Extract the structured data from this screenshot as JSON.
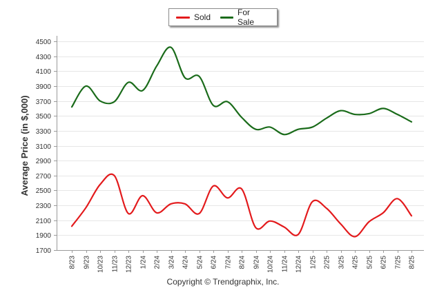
{
  "chart_data": {
    "type": "line",
    "categories": [
      "8/23",
      "9/23",
      "10/23",
      "11/23",
      "12/23",
      "1/24",
      "2/24",
      "3/24",
      "4/24",
      "5/24",
      "6/24",
      "7/24",
      "8/24",
      "9/24",
      "10/24",
      "11/24",
      "12/24",
      "1/25",
      "2/25",
      "3/25",
      "4/25",
      "5/25",
      "6/25",
      "7/25",
      "8/25"
    ],
    "series": [
      {
        "name": "Sold",
        "color": "#e31a1c",
        "values": [
          2020,
          2270,
          2580,
          2700,
          2190,
          2430,
          2200,
          2320,
          2320,
          2190,
          2560,
          2400,
          2520,
          2000,
          2090,
          2010,
          1910,
          2350,
          2260,
          2050,
          1880,
          2080,
          2200,
          2390,
          2160
        ]
      },
      {
        "name": "For Sale",
        "color": "#1a6b1a",
        "values": [
          3620,
          3900,
          3700,
          3690,
          3950,
          3840,
          4170,
          4420,
          4010,
          4030,
          3640,
          3690,
          3480,
          3320,
          3350,
          3250,
          3320,
          3350,
          3470,
          3570,
          3520,
          3530,
          3600,
          3520,
          3420
        ]
      }
    ],
    "title": "",
    "xlabel": "",
    "ylabel": "Average Price (in $,000)",
    "ylim": [
      1700,
      4500
    ],
    "yticks": [
      1700,
      1900,
      2100,
      2300,
      2500,
      2700,
      2900,
      3100,
      3300,
      3500,
      3700,
      3900,
      4100,
      4300,
      4500
    ],
    "grid": true,
    "legend_position": "top-center"
  },
  "footer": {
    "copyright": "Copyright © Trendgraphix, Inc."
  }
}
